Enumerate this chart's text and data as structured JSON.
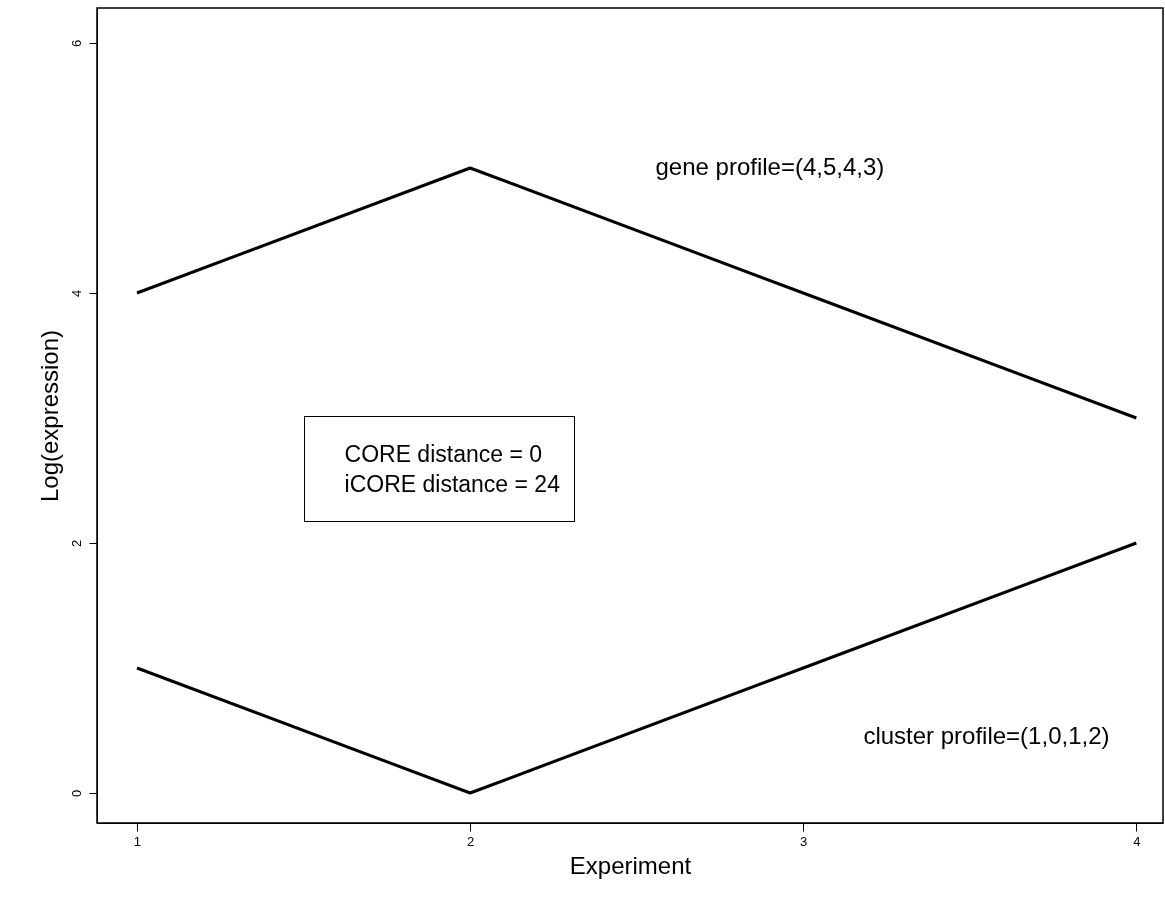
{
  "chart_data": {
    "type": "line",
    "xlabel": "Experiment",
    "ylabel": "Log(expression)",
    "x": [
      1,
      2,
      3,
      4
    ],
    "series": [
      {
        "name": "gene profile=(4,5,4,3)",
        "color": "#000000",
        "values": [
          4,
          5,
          4,
          3
        ]
      },
      {
        "name": "cluster profile=(1,0,1,2)",
        "color": "#000000",
        "values": [
          1,
          0,
          1,
          2
        ]
      }
    ],
    "xlim": [
      0.88,
      4.08
    ],
    "xticks": [
      1,
      2,
      3,
      4
    ],
    "ylim": [
      -0.24,
      6.28
    ],
    "yticks": [
      0,
      2,
      4,
      6
    ],
    "grid": false,
    "marker": "none",
    "line_style": "solid",
    "annotations": [
      "CORE distance = 0",
      "iCORE distance = 24"
    ]
  }
}
